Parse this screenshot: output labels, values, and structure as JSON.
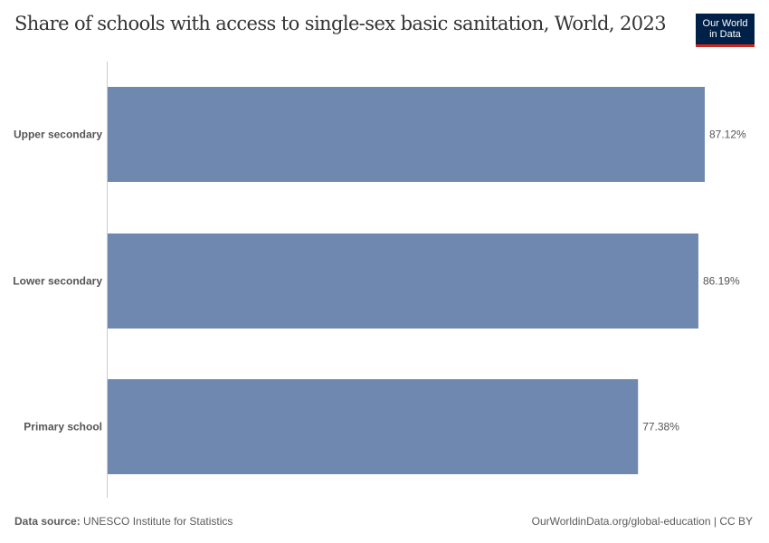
{
  "title": "Share of schools with access to single-sex basic sanitation, World, 2023",
  "logo": {
    "line1": "Our World",
    "line2": "in Data"
  },
  "footer": {
    "source_label": "Data source:",
    "source": "UNESCO Institute for Statistics",
    "url_license": "OurWorldinData.org/global-education | CC BY"
  },
  "colors": {
    "bar": "#6f88b0",
    "logo_bg": "#002147",
    "logo_accent": "#ce261e"
  },
  "chart_data": {
    "type": "bar",
    "orientation": "horizontal",
    "title": "Share of schools with access to single-sex basic sanitation, World, 2023",
    "categories": [
      "Upper secondary",
      "Lower secondary",
      "Primary school"
    ],
    "values": [
      87.12,
      86.19,
      77.38
    ],
    "labels": [
      "87.12%",
      "86.19%",
      "77.38%"
    ],
    "unit": "%",
    "xlim": [
      0,
      87.12
    ],
    "grid": false
  }
}
